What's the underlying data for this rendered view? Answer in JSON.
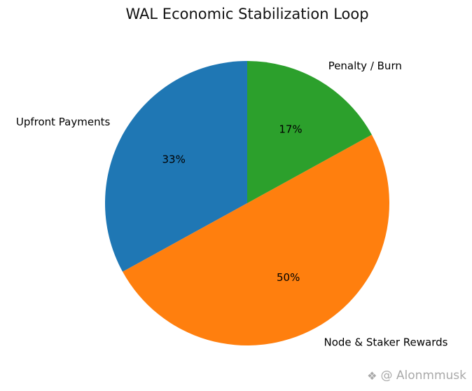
{
  "chart_data": {
    "type": "pie",
    "title": "WAL Economic Stabilization Loop",
    "categories": [
      "Upfront Payments",
      "Node & Staker Rewards",
      "Penalty / Burn"
    ],
    "values": [
      33,
      50,
      17
    ],
    "percent_labels": [
      "33%",
      "50%",
      "17%"
    ],
    "colors": [
      "#1f77b4",
      "#ff7f0e",
      "#2ca02c"
    ],
    "start_angle": 90,
    "counterclockwise": true,
    "legend_position": "none",
    "label_color": "#000000",
    "percent_text_color": "#000000"
  },
  "watermark": {
    "logo_icon": "❖",
    "text": "@ Alonmmusk",
    "color": "#a9a9a9"
  }
}
